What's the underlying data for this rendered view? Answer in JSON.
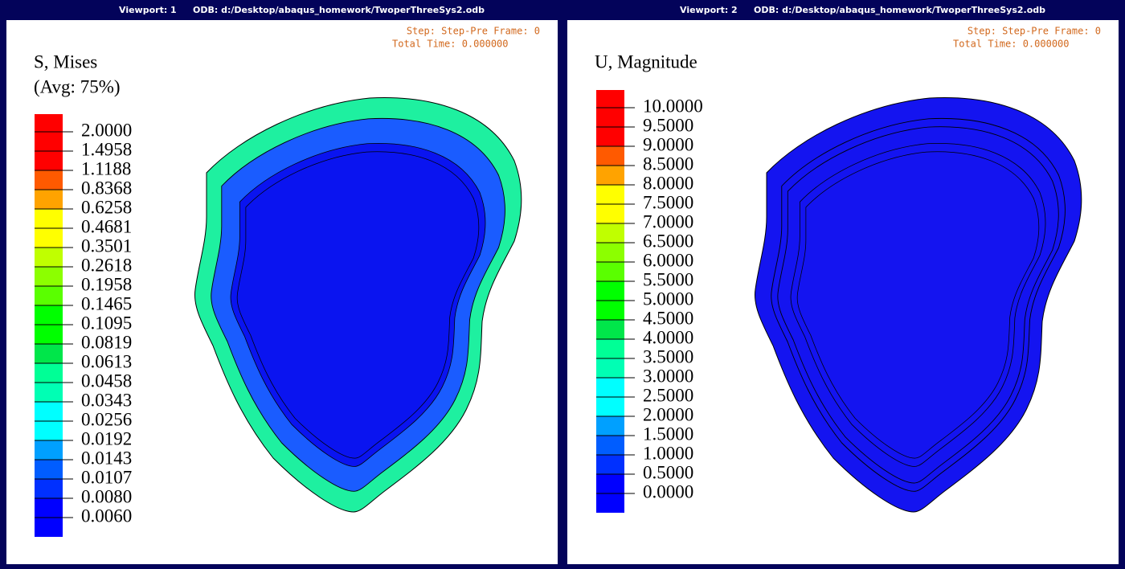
{
  "viewports": [
    {
      "title": "Viewport: 1",
      "odb": "ODB: d:/Desktop/abaqus_homework/TwoperThreeSys2.odb",
      "step": "Step: Step-Pre Frame: 0",
      "time": "Total Time: 0.000000",
      "legend": {
        "title": "S, Mises",
        "subtitle": "(Avg: 75%)",
        "labels": [
          "2.0000",
          "1.4958",
          "1.1188",
          "0.8368",
          "0.6258",
          "0.4681",
          "0.3501",
          "0.2618",
          "0.1958",
          "0.1465",
          "0.1095",
          "0.0819",
          "0.0613",
          "0.0458",
          "0.0343",
          "0.0256",
          "0.0192",
          "0.0143",
          "0.0107",
          "0.0080",
          "0.0060"
        ],
        "colors": [
          "#ff0000",
          "#ff0000",
          "#ff0000",
          "#ff5a00",
          "#ffa300",
          "#ffff00",
          "#ffff00",
          "#c0ff00",
          "#8cff00",
          "#5aff00",
          "#00ff00",
          "#00ff00",
          "#00e64a",
          "#00ff96",
          "#00ffb4",
          "#00ffff",
          "#00ffff",
          "#00a0ff",
          "#005dff",
          "#0030ff",
          "#0000ff",
          "#0000ff"
        ]
      }
    },
    {
      "title": "Viewport: 2",
      "odb": "ODB: d:/Desktop/abaqus_homework/TwoperThreeSys2.odb",
      "step": "Step: Step-Pre Frame: 0",
      "time": "Total Time: 0.000000",
      "legend": {
        "title": "U, Magnitude",
        "labels": [
          "10.0000",
          "9.5000",
          "9.0000",
          "8.5000",
          "8.0000",
          "7.5000",
          "7.0000",
          "6.5000",
          "6.0000",
          "5.5000",
          "5.0000",
          "4.5000",
          "4.0000",
          "3.5000",
          "3.0000",
          "2.5000",
          "2.0000",
          "1.5000",
          "1.0000",
          "0.5000",
          "0.0000"
        ],
        "colors": [
          "#ff0000",
          "#ff0000",
          "#ff0000",
          "#ff5a00",
          "#ffa300",
          "#ffff00",
          "#ffff00",
          "#c0ff00",
          "#8cff00",
          "#5aff00",
          "#00ff00",
          "#00ff00",
          "#00e64a",
          "#00ff96",
          "#00ffb4",
          "#00ffff",
          "#00ffff",
          "#00a0ff",
          "#005dff",
          "#0030ff",
          "#0000ff",
          "#0000ff"
        ]
      }
    }
  ]
}
